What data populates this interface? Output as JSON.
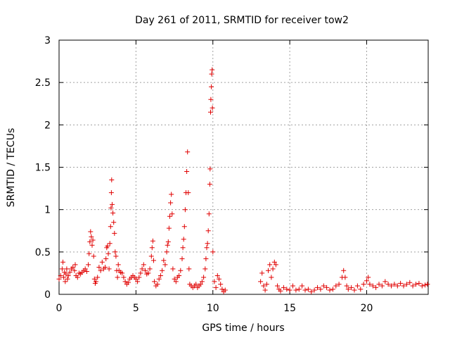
{
  "chart_data": {
    "type": "scatter",
    "title": "Day 261 of 2011, SRMTID for receiver tow2",
    "xlabel": "GPS time / hours",
    "ylabel": "SRMTID / TECUs",
    "xlim": [
      0,
      24
    ],
    "ylim": [
      0,
      3
    ],
    "xticks": [
      0,
      5,
      10,
      15,
      20
    ],
    "xtick_labels": [
      "0",
      "5",
      "10",
      "15",
      "20"
    ],
    "yticks": [
      0,
      0.5,
      1,
      1.5,
      2,
      2.5,
      3
    ],
    "ytick_labels": [
      "0",
      "0.5",
      "1",
      "1.5",
      "2",
      "2.5",
      "3"
    ],
    "grid": true,
    "marker": "+",
    "marker_color": "#e00000",
    "series": [
      {
        "name": "SRMTID",
        "points": [
          [
            0.0,
            0.18
          ],
          [
            0.1,
            0.22
          ],
          [
            0.2,
            0.3
          ],
          [
            0.25,
            0.38
          ],
          [
            0.3,
            0.2
          ],
          [
            0.35,
            0.26
          ],
          [
            0.4,
            0.15
          ],
          [
            0.45,
            0.24
          ],
          [
            0.5,
            0.3
          ],
          [
            0.55,
            0.18
          ],
          [
            0.6,
            0.22
          ],
          [
            0.7,
            0.26
          ],
          [
            0.8,
            0.3
          ],
          [
            0.9,
            0.32
          ],
          [
            1.0,
            0.28
          ],
          [
            1.05,
            0.35
          ],
          [
            1.1,
            0.22
          ],
          [
            1.2,
            0.2
          ],
          [
            1.3,
            0.25
          ],
          [
            1.4,
            0.24
          ],
          [
            1.5,
            0.26
          ],
          [
            1.6,
            0.28
          ],
          [
            1.7,
            0.3
          ],
          [
            1.8,
            0.27
          ],
          [
            1.9,
            0.35
          ],
          [
            1.95,
            0.48
          ],
          [
            2.0,
            0.62
          ],
          [
            2.05,
            0.74
          ],
          [
            2.1,
            0.68
          ],
          [
            2.15,
            0.58
          ],
          [
            2.2,
            0.64
          ],
          [
            2.25,
            0.45
          ],
          [
            2.3,
            0.18
          ],
          [
            2.35,
            0.13
          ],
          [
            2.4,
            0.15
          ],
          [
            2.5,
            0.2
          ],
          [
            2.6,
            0.32
          ],
          [
            2.7,
            0.28
          ],
          [
            2.8,
            0.38
          ],
          [
            2.9,
            0.3
          ],
          [
            3.0,
            0.32
          ],
          [
            3.05,
            0.42
          ],
          [
            3.1,
            0.55
          ],
          [
            3.15,
            0.57
          ],
          [
            3.2,
            0.48
          ],
          [
            3.25,
            0.3
          ],
          [
            3.3,
            0.6
          ],
          [
            3.35,
            0.8
          ],
          [
            3.38,
            1.02
          ],
          [
            3.4,
            1.2
          ],
          [
            3.42,
            1.35
          ],
          [
            3.45,
            1.06
          ],
          [
            3.5,
            0.96
          ],
          [
            3.55,
            0.85
          ],
          [
            3.6,
            0.72
          ],
          [
            3.65,
            0.5
          ],
          [
            3.7,
            0.45
          ],
          [
            3.75,
            0.28
          ],
          [
            3.8,
            0.2
          ],
          [
            3.85,
            0.35
          ],
          [
            3.9,
            0.28
          ],
          [
            4.0,
            0.26
          ],
          [
            4.1,
            0.25
          ],
          [
            4.2,
            0.2
          ],
          [
            4.3,
            0.15
          ],
          [
            4.4,
            0.12
          ],
          [
            4.5,
            0.14
          ],
          [
            4.6,
            0.18
          ],
          [
            4.7,
            0.2
          ],
          [
            4.8,
            0.22
          ],
          [
            4.9,
            0.2
          ],
          [
            5.0,
            0.18
          ],
          [
            5.1,
            0.15
          ],
          [
            5.2,
            0.2
          ],
          [
            5.3,
            0.25
          ],
          [
            5.4,
            0.3
          ],
          [
            5.5,
            0.35
          ],
          [
            5.6,
            0.28
          ],
          [
            5.7,
            0.24
          ],
          [
            5.8,
            0.25
          ],
          [
            5.9,
            0.3
          ],
          [
            6.0,
            0.45
          ],
          [
            6.05,
            0.55
          ],
          [
            6.1,
            0.63
          ],
          [
            6.15,
            0.4
          ],
          [
            6.2,
            0.15
          ],
          [
            6.3,
            0.1
          ],
          [
            6.4,
            0.12
          ],
          [
            6.5,
            0.18
          ],
          [
            6.6,
            0.22
          ],
          [
            6.7,
            0.28
          ],
          [
            6.8,
            0.4
          ],
          [
            6.9,
            0.35
          ],
          [
            7.0,
            0.5
          ],
          [
            7.05,
            0.58
          ],
          [
            7.1,
            0.62
          ],
          [
            7.15,
            0.78
          ],
          [
            7.2,
            0.92
          ],
          [
            7.25,
            1.08
          ],
          [
            7.3,
            1.18
          ],
          [
            7.35,
            0.95
          ],
          [
            7.4,
            0.3
          ],
          [
            7.5,
            0.18
          ],
          [
            7.6,
            0.15
          ],
          [
            7.7,
            0.2
          ],
          [
            7.8,
            0.22
          ],
          [
            7.9,
            0.28
          ],
          [
            8.0,
            0.42
          ],
          [
            8.05,
            0.55
          ],
          [
            8.1,
            0.65
          ],
          [
            8.15,
            0.8
          ],
          [
            8.2,
            1.0
          ],
          [
            8.25,
            1.2
          ],
          [
            8.3,
            1.45
          ],
          [
            8.35,
            1.68
          ],
          [
            8.4,
            1.2
          ],
          [
            8.45,
            0.3
          ],
          [
            8.5,
            0.12
          ],
          [
            8.6,
            0.1
          ],
          [
            8.7,
            0.08
          ],
          [
            8.8,
            0.1
          ],
          [
            8.9,
            0.12
          ],
          [
            9.0,
            0.08
          ],
          [
            9.1,
            0.1
          ],
          [
            9.2,
            0.12
          ],
          [
            9.3,
            0.15
          ],
          [
            9.4,
            0.2
          ],
          [
            9.5,
            0.3
          ],
          [
            9.55,
            0.42
          ],
          [
            9.6,
            0.55
          ],
          [
            9.65,
            0.6
          ],
          [
            9.7,
            0.75
          ],
          [
            9.75,
            0.95
          ],
          [
            9.8,
            1.3
          ],
          [
            9.82,
            1.48
          ],
          [
            9.85,
            2.15
          ],
          [
            9.87,
            2.3
          ],
          [
            9.9,
            2.45
          ],
          [
            9.92,
            2.6
          ],
          [
            9.95,
            2.65
          ],
          [
            9.97,
            2.2
          ],
          [
            10.0,
            0.5
          ],
          [
            10.1,
            0.15
          ],
          [
            10.2,
            0.08
          ],
          [
            10.3,
            0.22
          ],
          [
            10.4,
            0.18
          ],
          [
            10.5,
            0.12
          ],
          [
            10.6,
            0.06
          ],
          [
            10.7,
            0.03
          ],
          [
            10.8,
            0.05
          ],
          [
            13.1,
            0.15
          ],
          [
            13.2,
            0.25
          ],
          [
            13.3,
            0.1
          ],
          [
            13.4,
            0.05
          ],
          [
            13.5,
            0.12
          ],
          [
            13.6,
            0.28
          ],
          [
            13.7,
            0.35
          ],
          [
            13.8,
            0.2
          ],
          [
            13.9,
            0.3
          ],
          [
            14.0,
            0.38
          ],
          [
            14.1,
            0.35
          ],
          [
            14.2,
            0.1
          ],
          [
            14.3,
            0.06
          ],
          [
            14.4,
            0.04
          ],
          [
            14.6,
            0.08
          ],
          [
            14.8,
            0.06
          ],
          [
            15.0,
            0.05
          ],
          [
            15.2,
            0.1
          ],
          [
            15.4,
            0.05
          ],
          [
            15.6,
            0.06
          ],
          [
            15.8,
            0.1
          ],
          [
            16.0,
            0.05
          ],
          [
            16.2,
            0.06
          ],
          [
            16.4,
            0.03
          ],
          [
            16.6,
            0.05
          ],
          [
            16.8,
            0.08
          ],
          [
            17.0,
            0.06
          ],
          [
            17.2,
            0.1
          ],
          [
            17.4,
            0.08
          ],
          [
            17.6,
            0.05
          ],
          [
            17.8,
            0.06
          ],
          [
            18.0,
            0.1
          ],
          [
            18.2,
            0.12
          ],
          [
            18.4,
            0.2
          ],
          [
            18.5,
            0.28
          ],
          [
            18.6,
            0.2
          ],
          [
            18.7,
            0.1
          ],
          [
            18.8,
            0.06
          ],
          [
            19.0,
            0.08
          ],
          [
            19.2,
            0.05
          ],
          [
            19.4,
            0.1
          ],
          [
            19.6,
            0.06
          ],
          [
            19.8,
            0.12
          ],
          [
            20.0,
            0.16
          ],
          [
            20.1,
            0.2
          ],
          [
            20.2,
            0.12
          ],
          [
            20.4,
            0.1
          ],
          [
            20.6,
            0.08
          ],
          [
            20.8,
            0.12
          ],
          [
            21.0,
            0.1
          ],
          [
            21.2,
            0.15
          ],
          [
            21.4,
            0.12
          ],
          [
            21.6,
            0.1
          ],
          [
            21.8,
            0.12
          ],
          [
            22.0,
            0.1
          ],
          [
            22.2,
            0.13
          ],
          [
            22.4,
            0.1
          ],
          [
            22.6,
            0.12
          ],
          [
            22.8,
            0.14
          ],
          [
            23.0,
            0.1
          ],
          [
            23.2,
            0.12
          ],
          [
            23.4,
            0.13
          ],
          [
            23.6,
            0.1
          ],
          [
            23.8,
            0.11
          ],
          [
            23.95,
            0.12
          ]
        ]
      }
    ]
  }
}
